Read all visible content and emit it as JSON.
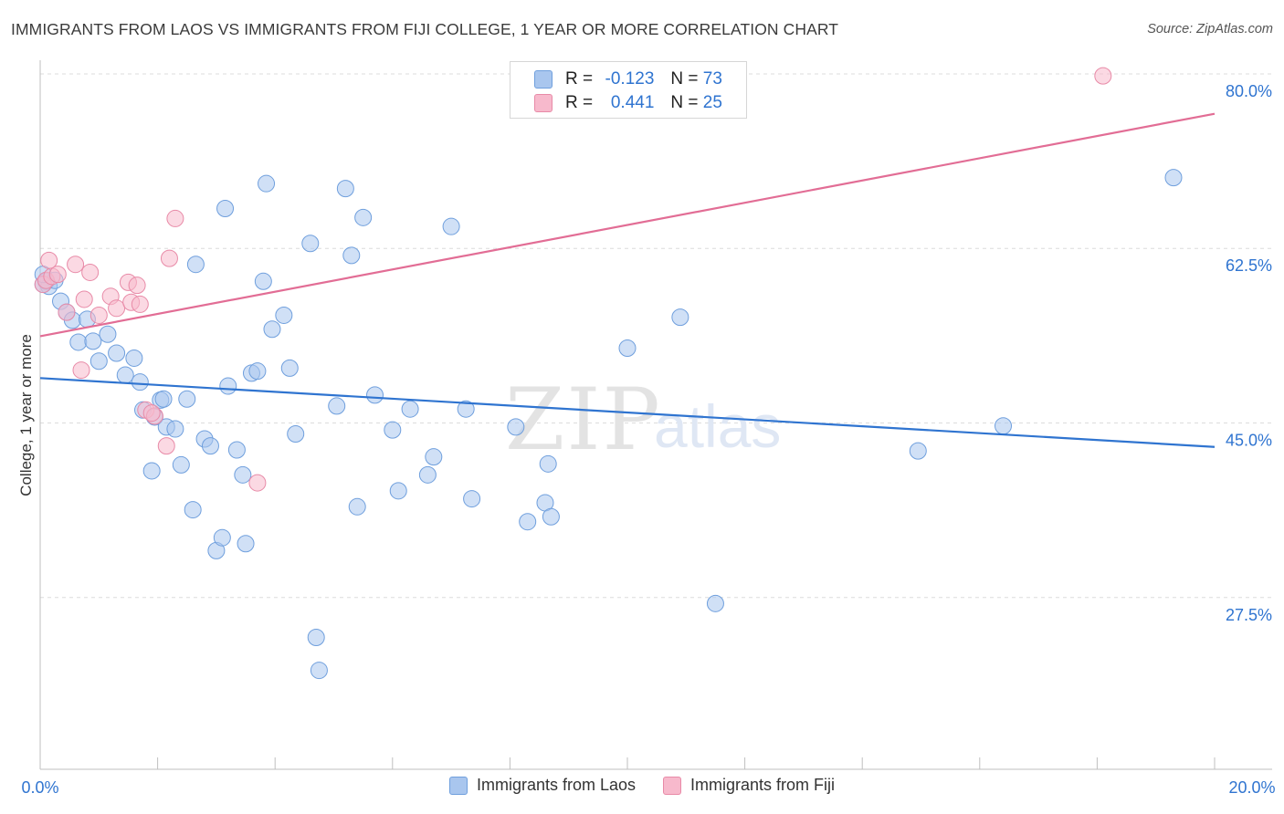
{
  "title": "IMMIGRANTS FROM LAOS VS IMMIGRANTS FROM FIJI COLLEGE, 1 YEAR OR MORE CORRELATION CHART",
  "source": "Source: ZipAtlas.com",
  "watermark": {
    "zip": "ZIP",
    "atlas": "atlas"
  },
  "legend": {
    "rows": [
      {
        "r_label": "R =",
        "r_value": "-0.123",
        "n_label": "N =",
        "n_value": "73",
        "color": "#a9c6ee",
        "stroke": "#6f9fdd"
      },
      {
        "r_label": "R =",
        "r_value": "0.441",
        "n_label": "N =",
        "n_value": "25",
        "color": "#f7b9cc",
        "stroke": "#e88aa7"
      }
    ]
  },
  "bottom_legend": [
    {
      "label": "Immigrants from Laos",
      "color": "#a9c6ee",
      "stroke": "#6f9fdd"
    },
    {
      "label": "Immigrants from Fiji",
      "color": "#f7b9cc",
      "stroke": "#e88aa7"
    }
  ],
  "chart_data": {
    "type": "scatter",
    "title": "IMMIGRANTS FROM LAOS VS IMMIGRANTS FROM FIJI COLLEGE, 1 YEAR OR MORE CORRELATION CHART",
    "xlabel": "",
    "ylabel": "College, 1 year or more",
    "xlim": [
      0,
      20
    ],
    "ylim": [
      10,
      82
    ],
    "x_tick_labels": [
      "0.0%",
      "20.0%"
    ],
    "y_ticks": [
      27.5,
      45.0,
      62.5,
      80.0
    ],
    "y_tick_labels": [
      "27.5%",
      "45.0%",
      "62.5%",
      "80.0%"
    ],
    "grid": true,
    "series": [
      {
        "name": "Immigrants from Laos",
        "color": "#a9c6ee",
        "stroke": "#6f9fdd",
        "line_color": "#2f74d0",
        "r": -0.123,
        "n": 73,
        "trend": {
          "x": [
            0,
            20
          ],
          "y": [
            49.5,
            42.6
          ]
        },
        "points": [
          [
            0.1,
            59.2
          ],
          [
            0.15,
            58.7
          ],
          [
            0.25,
            59.3
          ],
          [
            0.35,
            57.2
          ],
          [
            0.45,
            56.1
          ],
          [
            0.55,
            55.3
          ],
          [
            0.65,
            53.1
          ],
          [
            0.8,
            55.4
          ],
          [
            0.9,
            53.2
          ],
          [
            1.0,
            51.2
          ],
          [
            1.15,
            53.9
          ],
          [
            1.3,
            52.0
          ],
          [
            1.45,
            49.8
          ],
          [
            1.6,
            51.5
          ],
          [
            1.75,
            46.3
          ],
          [
            1.7,
            49.1
          ],
          [
            1.9,
            40.2
          ],
          [
            1.95,
            45.6
          ],
          [
            2.05,
            47.3
          ],
          [
            2.1,
            47.4
          ],
          [
            2.15,
            44.6
          ],
          [
            2.3,
            44.4
          ],
          [
            2.4,
            40.8
          ],
          [
            2.5,
            47.4
          ],
          [
            2.6,
            36.3
          ],
          [
            2.65,
            60.9
          ],
          [
            2.8,
            43.4
          ],
          [
            2.9,
            42.7
          ],
          [
            3.0,
            32.2
          ],
          [
            3.1,
            33.5
          ],
          [
            3.15,
            66.5
          ],
          [
            3.2,
            48.7
          ],
          [
            3.35,
            42.3
          ],
          [
            3.45,
            39.8
          ],
          [
            3.5,
            32.9
          ],
          [
            3.6,
            50.0
          ],
          [
            3.7,
            50.2
          ],
          [
            3.8,
            59.2
          ],
          [
            3.85,
            69.0
          ],
          [
            3.95,
            54.4
          ],
          [
            4.15,
            55.8
          ],
          [
            4.25,
            50.5
          ],
          [
            4.35,
            43.9
          ],
          [
            4.6,
            63.0
          ],
          [
            4.7,
            23.5
          ],
          [
            4.75,
            20.2
          ],
          [
            5.05,
            46.7
          ],
          [
            5.2,
            68.5
          ],
          [
            5.3,
            61.8
          ],
          [
            5.4,
            36.6
          ],
          [
            5.5,
            65.6
          ],
          [
            5.7,
            47.8
          ],
          [
            6.0,
            44.3
          ],
          [
            6.1,
            38.2
          ],
          [
            6.3,
            46.4
          ],
          [
            6.6,
            39.8
          ],
          [
            6.7,
            41.6
          ],
          [
            7.0,
            64.7
          ],
          [
            7.25,
            46.4
          ],
          [
            7.35,
            37.4
          ],
          [
            8.1,
            44.6
          ],
          [
            8.3,
            35.1
          ],
          [
            8.6,
            37.0
          ],
          [
            8.65,
            40.9
          ],
          [
            8.7,
            35.6
          ],
          [
            10.0,
            52.5
          ],
          [
            10.9,
            55.6
          ],
          [
            11.5,
            26.9
          ],
          [
            14.95,
            42.2
          ],
          [
            16.4,
            44.7
          ],
          [
            19.3,
            69.6
          ],
          [
            0.05,
            58.9
          ],
          [
            0.05,
            59.9
          ]
        ]
      },
      {
        "name": "Immigrants from Fiji",
        "color": "#f7b9cc",
        "stroke": "#e88aa7",
        "line_color": "#e26d95",
        "r": 0.441,
        "n": 25,
        "trend": {
          "x": [
            0,
            20
          ],
          "y": [
            53.7,
            76.0
          ]
        },
        "points": [
          [
            0.05,
            58.9
          ],
          [
            0.1,
            59.3
          ],
          [
            0.15,
            61.3
          ],
          [
            0.2,
            59.7
          ],
          [
            0.3,
            59.9
          ],
          [
            0.45,
            56.1
          ],
          [
            0.6,
            60.9
          ],
          [
            0.75,
            57.4
          ],
          [
            0.85,
            60.1
          ],
          [
            1.0,
            55.8
          ],
          [
            1.2,
            57.7
          ],
          [
            1.3,
            56.5
          ],
          [
            1.5,
            59.1
          ],
          [
            1.55,
            57.1
          ],
          [
            1.65,
            58.8
          ],
          [
            1.7,
            56.9
          ],
          [
            1.8,
            46.3
          ],
          [
            1.95,
            45.7
          ],
          [
            2.15,
            42.7
          ],
          [
            2.2,
            61.5
          ],
          [
            2.3,
            65.5
          ],
          [
            3.7,
            39.0
          ],
          [
            0.7,
            50.3
          ],
          [
            1.9,
            46.0
          ],
          [
            18.1,
            79.8
          ]
        ]
      }
    ]
  }
}
